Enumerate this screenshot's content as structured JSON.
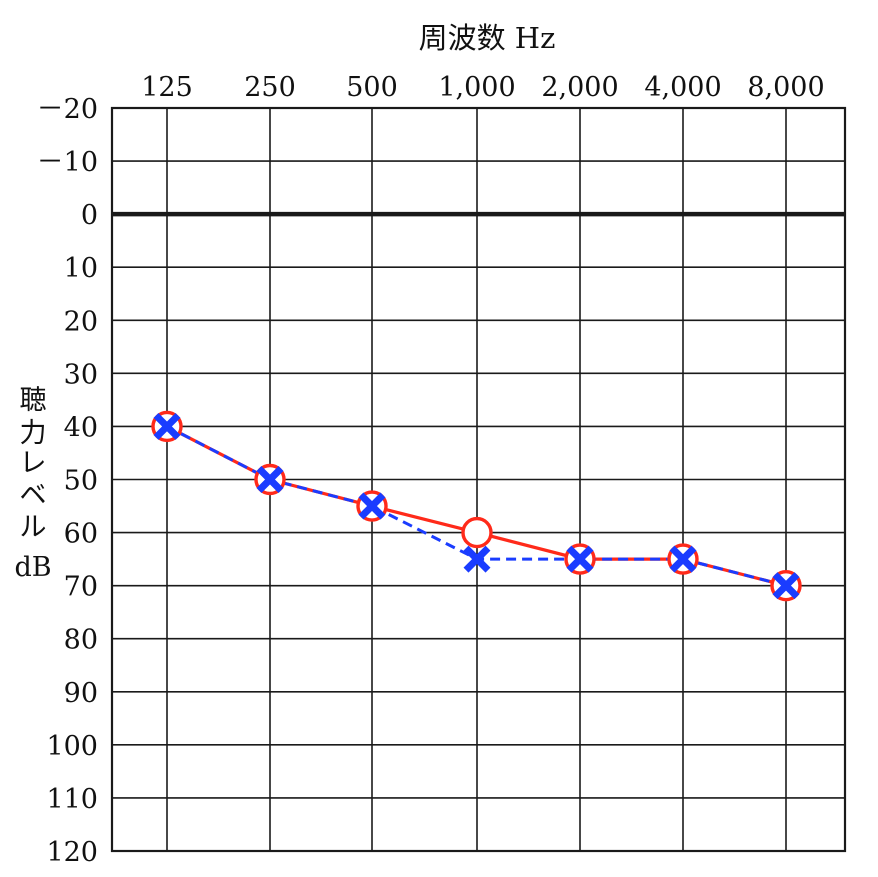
{
  "chart_data": {
    "type": "line",
    "xlabel": "周波数 Hz",
    "ylabel_lines": [
      "聴",
      "力",
      "レ",
      "ベ",
      "ル",
      "dB"
    ],
    "x_ticks": [
      "125",
      "250",
      "500",
      "1,000",
      "2,000",
      "4,000",
      "8,000"
    ],
    "x": [
      125,
      250,
      500,
      1000,
      2000,
      4000,
      8000
    ],
    "y_ticks": [
      "－20",
      "－10",
      "0",
      "10",
      "20",
      "30",
      "40",
      "50",
      "60",
      "70",
      "80",
      "90",
      "100",
      "110",
      "120"
    ],
    "y_tick_values": [
      -20,
      -10,
      0,
      10,
      20,
      30,
      40,
      50,
      60,
      70,
      80,
      90,
      100,
      110,
      120
    ],
    "ylim": [
      -20,
      120
    ],
    "y_inverted": true,
    "x_scale": "log2",
    "grid": true,
    "series": [
      {
        "marker": "circle",
        "line_style": "solid",
        "color": "#ff2a1a",
        "values": [
          40,
          50,
          55,
          60,
          65,
          65,
          70
        ]
      },
      {
        "marker": "cross",
        "line_style": "dashed",
        "color": "#1a3cff",
        "values": [
          40,
          50,
          55,
          65,
          65,
          65,
          70
        ]
      }
    ]
  }
}
